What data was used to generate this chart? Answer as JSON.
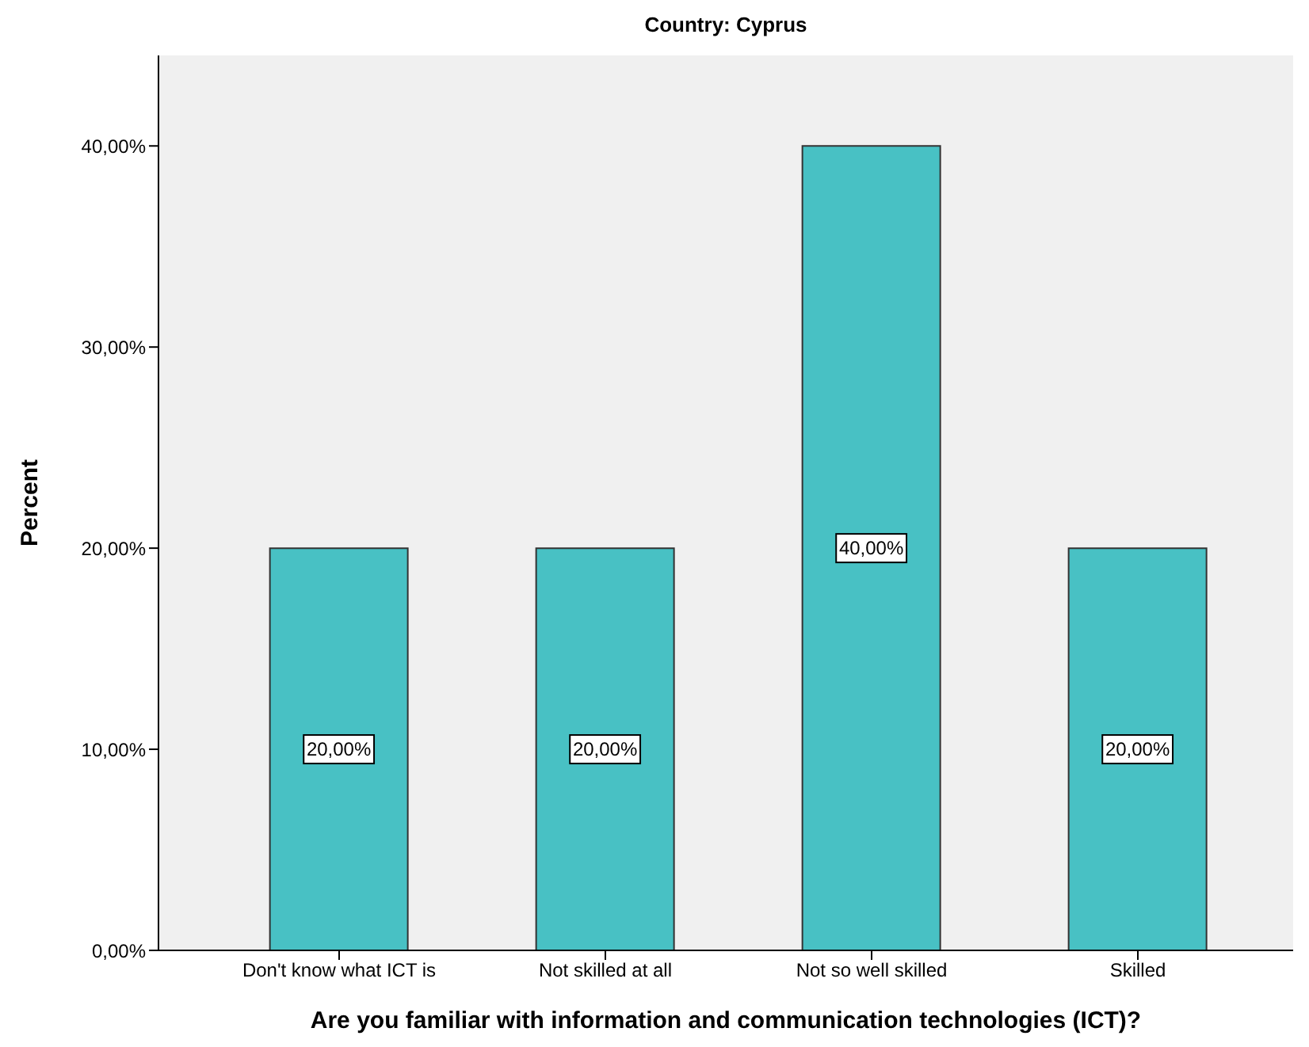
{
  "chart_data": {
    "type": "bar",
    "title": "Country: Cyprus",
    "xlabel": "Are you familiar with information and communication technologies (ICT)?",
    "ylabel": "Percent",
    "categories": [
      "Don't know what ICT is",
      "Not skilled at all",
      "Not so well skilled",
      "Skilled"
    ],
    "values": [
      20,
      20,
      40,
      20
    ],
    "value_labels": [
      "20,00%",
      "20,00%",
      "40,00%",
      "20,00%"
    ],
    "color": "#48c1c4",
    "ylim": [
      0,
      44.5
    ],
    "yticks": [
      {
        "value": 0,
        "label": "0,00%"
      },
      {
        "value": 10,
        "label": "10,00%"
      },
      {
        "value": 20,
        "label": "20,00%"
      },
      {
        "value": 30,
        "label": "30,00%"
      },
      {
        "value": 40,
        "label": "40,00%"
      }
    ],
    "grid": false,
    "legend": false
  }
}
